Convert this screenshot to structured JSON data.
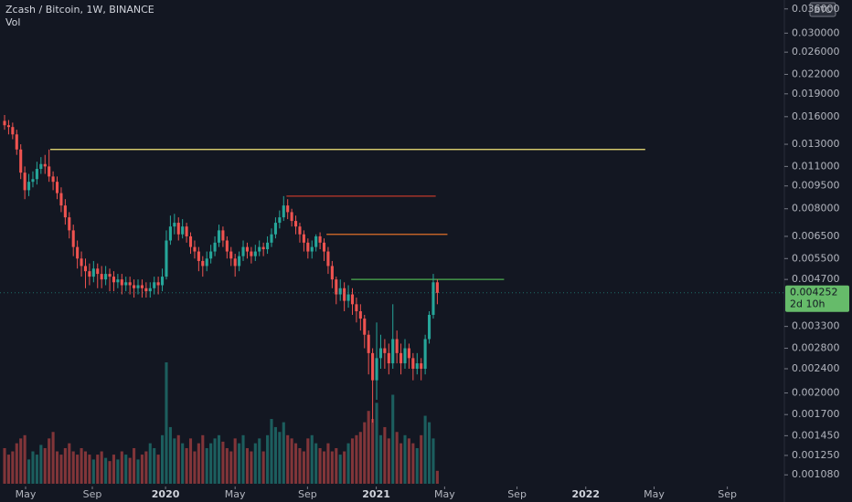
{
  "chart_data": {
    "type": "candlestick",
    "title": "Zcash / Bitcoin, 1W, BINANCE",
    "volume_label": "Vol",
    "currency": "BTC",
    "log_scale": true,
    "up_color": "#26a69a",
    "down_color": "#ef5350",
    "ylim": [
      0.00101,
      0.0385
    ],
    "yticks": [
      {
        "value": 0.036,
        "label": "0.036000"
      },
      {
        "value": 0.03,
        "label": "0.030000"
      },
      {
        "value": 0.026,
        "label": "0.026000"
      },
      {
        "value": 0.022,
        "label": "0.022000"
      },
      {
        "value": 0.019,
        "label": "0.019000"
      },
      {
        "value": 0.016,
        "label": "0.016000"
      },
      {
        "value": 0.013,
        "label": "0.013000"
      },
      {
        "value": 0.011,
        "label": "0.011000"
      },
      {
        "value": 0.0095,
        "label": "0.009500"
      },
      {
        "value": 0.008,
        "label": "0.008000"
      },
      {
        "value": 0.0065,
        "label": "0.006500"
      },
      {
        "value": 0.0055,
        "label": "0.005500"
      },
      {
        "value": 0.0047,
        "label": "0.004700"
      },
      {
        "value": 0.0033,
        "label": "0.003300"
      },
      {
        "value": 0.0028,
        "label": "0.002800"
      },
      {
        "value": 0.0024,
        "label": "0.002400"
      },
      {
        "value": 0.002,
        "label": "0.002000"
      },
      {
        "value": 0.0017,
        "label": "0.001700"
      },
      {
        "value": 0.00145,
        "label": "0.001450"
      },
      {
        "value": 0.00125,
        "label": "0.001250"
      },
      {
        "value": 0.00108,
        "label": "0.001080"
      }
    ],
    "xlim": [
      -1.13,
      192.8
    ],
    "xticks": [
      {
        "value": 5.2,
        "label": "May"
      },
      {
        "value": 21.7,
        "label": "Sep"
      },
      {
        "value": 39.8,
        "label": "2020"
      },
      {
        "value": 57,
        "label": "May"
      },
      {
        "value": 74.9,
        "label": "Sep"
      },
      {
        "value": 91.9,
        "label": "2021"
      },
      {
        "value": 108.8,
        "label": "May"
      },
      {
        "value": 126.7,
        "label": "Sep"
      },
      {
        "value": 143.7,
        "label": "2022"
      },
      {
        "value": 160.6,
        "label": "May"
      },
      {
        "value": 178.7,
        "label": "Sep"
      }
    ],
    "open": [
      0.0155,
      0.015,
      0.0148,
      0.014,
      0.0125,
      0.0105,
      0.0092,
      0.0098,
      0.01,
      0.0108,
      0.0112,
      0.011,
      0.0102,
      0.0098,
      0.009,
      0.0082,
      0.0075,
      0.0068,
      0.006,
      0.0055,
      0.0052,
      0.005,
      0.0048,
      0.0051,
      0.0049,
      0.0047,
      0.0049,
      0.0048,
      0.0046,
      0.0047,
      0.0045,
      0.0046,
      0.0045,
      0.0044,
      0.0045,
      0.0044,
      0.0043,
      0.0044,
      0.0046,
      0.0045,
      0.0048,
      0.0063,
      0.007,
      0.0072,
      0.0066,
      0.007,
      0.0065,
      0.006,
      0.0058,
      0.0054,
      0.0052,
      0.0055,
      0.0058,
      0.0062,
      0.0068,
      0.0063,
      0.0058,
      0.0055,
      0.0052,
      0.0056,
      0.006,
      0.0058,
      0.0056,
      0.0058,
      0.006,
      0.0059,
      0.0062,
      0.0066,
      0.0072,
      0.0075,
      0.0082,
      0.0078,
      0.0073,
      0.007,
      0.0066,
      0.0062,
      0.0058,
      0.006,
      0.0065,
      0.0062,
      0.0058,
      0.0052,
      0.0047,
      0.0042,
      0.0044,
      0.004,
      0.0042,
      0.0039,
      0.0037,
      0.0035,
      0.0031,
      0.0027,
      0.0022,
      0.0026,
      0.0028,
      0.0027,
      0.0025,
      0.003,
      0.0027,
      0.0025,
      0.0028,
      0.0026,
      0.0024,
      0.0025,
      0.0024,
      0.003,
      0.0036,
      0.0046
    ],
    "high": [
      0.0162,
      0.0156,
      0.0153,
      0.0145,
      0.013,
      0.011,
      0.0104,
      0.0106,
      0.0114,
      0.0118,
      0.012,
      0.0125,
      0.0106,
      0.0102,
      0.0094,
      0.0086,
      0.0078,
      0.0071,
      0.0063,
      0.0058,
      0.0055,
      0.0053,
      0.0054,
      0.0053,
      0.0052,
      0.0052,
      0.0051,
      0.005,
      0.0049,
      0.0049,
      0.0048,
      0.0048,
      0.0047,
      0.0047,
      0.0047,
      0.0046,
      0.0046,
      0.0048,
      0.0048,
      0.0051,
      0.0068,
      0.0076,
      0.0077,
      0.0075,
      0.0074,
      0.0072,
      0.0067,
      0.0063,
      0.006,
      0.0056,
      0.0058,
      0.0061,
      0.0065,
      0.0071,
      0.007,
      0.0065,
      0.006,
      0.0057,
      0.0058,
      0.0063,
      0.0062,
      0.006,
      0.0061,
      0.0063,
      0.0062,
      0.0065,
      0.0069,
      0.0075,
      0.0079,
      0.0088,
      0.0086,
      0.008,
      0.0076,
      0.0072,
      0.0068,
      0.0064,
      0.0063,
      0.0066,
      0.0067,
      0.0064,
      0.006,
      0.0054,
      0.0048,
      0.0047,
      0.0046,
      0.0045,
      0.0044,
      0.0041,
      0.0039,
      0.0036,
      0.0032,
      0.0028,
      0.0034,
      0.0031,
      0.003,
      0.0029,
      0.0039,
      0.0032,
      0.0029,
      0.003,
      0.0029,
      0.0027,
      0.0027,
      0.0026,
      0.0031,
      0.0037,
      0.0049,
      0.0047
    ],
    "low": [
      0.0145,
      0.014,
      0.0135,
      0.012,
      0.01,
      0.0086,
      0.0088,
      0.0094,
      0.0096,
      0.0104,
      0.0104,
      0.0098,
      0.0092,
      0.0086,
      0.0078,
      0.0071,
      0.0064,
      0.0056,
      0.0051,
      0.0048,
      0.0044,
      0.0045,
      0.0046,
      0.0044,
      0.0044,
      0.0045,
      0.0043,
      0.0043,
      0.0044,
      0.0042,
      0.0043,
      0.0042,
      0.0041,
      0.0042,
      0.0041,
      0.0041,
      0.0041,
      0.0042,
      0.0042,
      0.0043,
      0.0047,
      0.0061,
      0.0066,
      0.0063,
      0.0064,
      0.0062,
      0.0057,
      0.0055,
      0.005,
      0.0048,
      0.005,
      0.0053,
      0.0056,
      0.006,
      0.006,
      0.0055,
      0.0052,
      0.0048,
      0.005,
      0.0054,
      0.0055,
      0.0053,
      0.0054,
      0.0056,
      0.0056,
      0.0057,
      0.006,
      0.0064,
      0.0069,
      0.0073,
      0.0074,
      0.007,
      0.0066,
      0.0062,
      0.0058,
      0.0055,
      0.0055,
      0.0058,
      0.0059,
      0.0054,
      0.0049,
      0.0044,
      0.0039,
      0.004,
      0.0037,
      0.0038,
      0.0036,
      0.0034,
      0.0032,
      0.0028,
      0.0023,
      0.0016,
      0.0019,
      0.0024,
      0.0024,
      0.0023,
      0.0024,
      0.0025,
      0.0023,
      0.0024,
      0.0024,
      0.0022,
      0.0023,
      0.0022,
      0.0023,
      0.0029,
      0.0035,
      0.0039
    ],
    "close": [
      0.015,
      0.0148,
      0.014,
      0.0125,
      0.0105,
      0.0092,
      0.0098,
      0.01,
      0.0108,
      0.0112,
      0.011,
      0.0102,
      0.0098,
      0.009,
      0.0082,
      0.0075,
      0.0068,
      0.006,
      0.0055,
      0.0052,
      0.005,
      0.0048,
      0.0051,
      0.0049,
      0.0047,
      0.0049,
      0.0048,
      0.0046,
      0.0047,
      0.0045,
      0.0046,
      0.0045,
      0.0044,
      0.0045,
      0.0044,
      0.0043,
      0.0044,
      0.0046,
      0.0045,
      0.0048,
      0.0063,
      0.007,
      0.0072,
      0.0066,
      0.007,
      0.0065,
      0.006,
      0.0058,
      0.0054,
      0.0052,
      0.0055,
      0.0058,
      0.0062,
      0.0068,
      0.0063,
      0.0058,
      0.0055,
      0.0052,
      0.0056,
      0.006,
      0.0058,
      0.0056,
      0.0058,
      0.006,
      0.0059,
      0.0062,
      0.0066,
      0.0072,
      0.0075,
      0.0082,
      0.0078,
      0.0073,
      0.007,
      0.0066,
      0.0062,
      0.0058,
      0.006,
      0.0065,
      0.0062,
      0.0058,
      0.0052,
      0.0047,
      0.0042,
      0.0044,
      0.004,
      0.0042,
      0.0039,
      0.0037,
      0.0035,
      0.0031,
      0.0027,
      0.0022,
      0.0026,
      0.0028,
      0.0027,
      0.0025,
      0.003,
      0.0027,
      0.0025,
      0.0028,
      0.0026,
      0.0024,
      0.0025,
      0.0024,
      0.003,
      0.0036,
      0.0046,
      0.00425
    ],
    "volume": [
      22,
      18,
      20,
      25,
      28,
      30,
      15,
      20,
      18,
      24,
      22,
      28,
      32,
      20,
      18,
      22,
      25,
      20,
      18,
      22,
      20,
      18,
      15,
      18,
      20,
      16,
      14,
      18,
      15,
      20,
      18,
      16,
      22,
      15,
      18,
      20,
      25,
      22,
      18,
      30,
      75,
      35,
      28,
      30,
      25,
      22,
      28,
      20,
      25,
      30,
      22,
      25,
      28,
      30,
      26,
      22,
      20,
      28,
      25,
      30,
      22,
      20,
      25,
      28,
      20,
      30,
      40,
      35,
      32,
      38,
      30,
      28,
      25,
      22,
      20,
      28,
      30,
      25,
      22,
      20,
      25,
      20,
      22,
      18,
      20,
      25,
      28,
      30,
      32,
      38,
      45,
      40,
      50,
      30,
      35,
      28,
      55,
      32,
      25,
      30,
      28,
      25,
      22,
      30,
      42,
      38,
      28,
      8
    ],
    "levels": [
      {
        "value": 0.0125,
        "x": [
          11.3,
          158.4
        ],
        "color": "#f5e67a"
      },
      {
        "value": 0.0088,
        "x": [
          69.7,
          106.6
        ],
        "color": "#c0392b"
      },
      {
        "value": 0.0066,
        "x": [
          79.6,
          109.5
        ],
        "color": "#e0702a"
      },
      {
        "value": 0.0047,
        "x": [
          85.7,
          123.5
        ],
        "color": "#4caf50"
      }
    ],
    "last_price": 0.004252,
    "last_price_label": "0.004252",
    "countdown": "2d 10h"
  }
}
